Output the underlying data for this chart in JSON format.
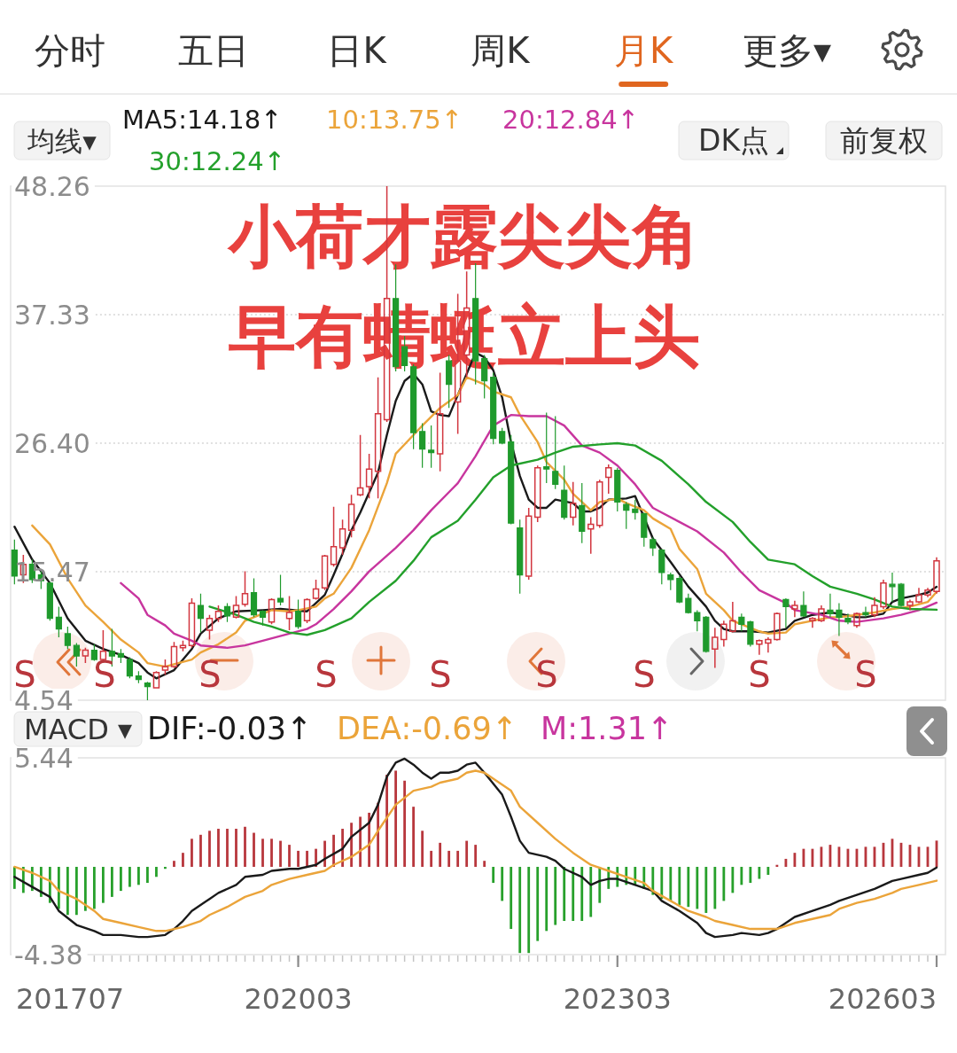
{
  "chart_data": [
    {
      "type": "other",
      "categories": [
        "分时",
        "五日",
        "日K",
        "周K",
        "月K",
        "更多▾"
      ],
      "colors": [
        "#333333",
        "#333333",
        "#333333",
        "#333333",
        "#e0661f",
        "#333333"
      ]
    },
    {
      "type": "candlestick",
      "title": "小荷才露尖尖角",
      "subtitle": "早有蜻蜓立上头",
      "legend_title": "均线▾",
      "legend": "top",
      "x": [
        "2017-07",
        "2017-08",
        "2017-09",
        "2017-10",
        "2017-11",
        "2017-12",
        "2018-01",
        "2018-02",
        "2018-03",
        "2018-04",
        "2018-05",
        "2018-06",
        "2018-07",
        "2018-08",
        "2018-09",
        "2018-10",
        "2018-11",
        "2018-12",
        "2019-01",
        "2019-02",
        "2019-03",
        "2019-04",
        "2019-05",
        "2019-06",
        "2019-07",
        "2019-08",
        "2019-09",
        "2019-10",
        "2019-11",
        "2019-12",
        "2020-01",
        "2020-02",
        "2020-03",
        "2020-04",
        "2020-05",
        "2020-06",
        "2020-07",
        "2020-08",
        "2020-09",
        "2020-10",
        "2020-11",
        "2020-12",
        "2021-01",
        "2021-02",
        "2021-03",
        "2021-04",
        "2021-05",
        "2021-06",
        "2021-07",
        "2021-08",
        "2021-09",
        "2021-10",
        "2021-11",
        "2021-12",
        "2022-01",
        "2022-02",
        "2022-03",
        "2022-04",
        "2022-05",
        "2022-06",
        "2022-07",
        "2022-08",
        "2022-09",
        "2022-10",
        "2022-11",
        "2022-12",
        "2023-01",
        "2023-02",
        "2023-03",
        "2023-04",
        "2023-05",
        "2023-06",
        "2023-07",
        "2023-08",
        "2023-09",
        "2023-10",
        "2023-11",
        "2023-12",
        "2024-01",
        "2024-02",
        "2024-03",
        "2024-04",
        "2024-05",
        "2024-06",
        "2024-07",
        "2024-08",
        "2024-09",
        "2024-10",
        "2024-11",
        "2024-12",
        "2025-01",
        "2025-02",
        "2025-03",
        "2025-04",
        "2025-05",
        "2025-06",
        "2025-07",
        "2025-08",
        "2025-09",
        "2025-10",
        "2025-11",
        "2025-12",
        "2026-01",
        "2026-02",
        "2026-03"
      ],
      "ohlc": [
        [
          17.3,
          18.2,
          14.4,
          15.1
        ],
        [
          15.2,
          16.9,
          14.5,
          16.1
        ],
        [
          16.1,
          16.5,
          14.5,
          14.8
        ],
        [
          15.2,
          15.5,
          14.0,
          14.7
        ],
        [
          14.5,
          14.6,
          11.3,
          11.5
        ],
        [
          11.6,
          12.5,
          9.9,
          10.6
        ],
        [
          10.2,
          10.8,
          8.9,
          9.2
        ],
        [
          9.2,
          9.4,
          7.4,
          8.3
        ],
        [
          8.3,
          9.0,
          7.7,
          8.8
        ],
        [
          8.8,
          9.3,
          7.9,
          8.0
        ],
        [
          8.0,
          10.5,
          7.9,
          8.7
        ],
        [
          8.7,
          10.6,
          7.4,
          8.3
        ],
        [
          8.5,
          8.9,
          7.7,
          8.2
        ],
        [
          8.0,
          8.2,
          6.4,
          6.6
        ],
        [
          6.6,
          7.0,
          6.0,
          6.3
        ],
        [
          6.0,
          6.1,
          4.54,
          5.7
        ],
        [
          5.6,
          7.0,
          5.6,
          6.9
        ],
        [
          7.1,
          8.0,
          6.7,
          7.4
        ],
        [
          7.4,
          9.5,
          7.3,
          9.1
        ],
        [
          9.0,
          9.6,
          8.7,
          9.2
        ],
        [
          9.2,
          13.2,
          9.0,
          12.8
        ],
        [
          12.6,
          13.6,
          10.3,
          11.5
        ],
        [
          10.5,
          11.8,
          9.7,
          11.5
        ],
        [
          11.5,
          12.6,
          11.2,
          12.1
        ],
        [
          12.5,
          12.8,
          11.2,
          11.7
        ],
        [
          11.6,
          13.4,
          11.5,
          12.6
        ],
        [
          12.7,
          15.5,
          12.5,
          13.6
        ],
        [
          13.7,
          14.9,
          11.6,
          11.8
        ],
        [
          12.1,
          12.2,
          10.9,
          11.6
        ],
        [
          11.2,
          13.2,
          11.0,
          13.1
        ],
        [
          13.2,
          15.2,
          12.6,
          12.9
        ],
        [
          11.5,
          13.4,
          10.5,
          12.0
        ],
        [
          12.1,
          13.1,
          10.6,
          10.8
        ],
        [
          11.3,
          13.2,
          11.1,
          13.1
        ],
        [
          13.2,
          14.8,
          13.1,
          14.0
        ],
        [
          14.1,
          16.9,
          13.9,
          16.8
        ],
        [
          16.1,
          21.0,
          15.9,
          17.6
        ],
        [
          17.5,
          19.9,
          16.9,
          19.1
        ],
        [
          19.0,
          22.0,
          18.4,
          21.2
        ],
        [
          22.0,
          27.1,
          21.9,
          22.6
        ],
        [
          22.7,
          25.5,
          21.7,
          24.2
        ],
        [
          24.0,
          32.0,
          21.7,
          28.9
        ],
        [
          28.4,
          48.26,
          28.2,
          38.7
        ],
        [
          38.7,
          41.6,
          32.5,
          32.9
        ],
        [
          34.6,
          35.5,
          32.5,
          33.0
        ],
        [
          32.9,
          33.1,
          25.9,
          27.3
        ],
        [
          27.4,
          28.1,
          24.3,
          25.9
        ],
        [
          25.8,
          27.9,
          24.3,
          25.6
        ],
        [
          25.5,
          32.4,
          24.0,
          28.9
        ],
        [
          33.4,
          33.9,
          29.4,
          31.4
        ],
        [
          29.9,
          39.1,
          27.2,
          33.4
        ],
        [
          33.9,
          41.0,
          32.0,
          37.9
        ],
        [
          38.7,
          41.7,
          31.4,
          33.4
        ],
        [
          33.6,
          33.9,
          30.2,
          31.7
        ],
        [
          32.0,
          32.4,
          26.3,
          26.8
        ],
        [
          27.4,
          27.7,
          26.3,
          26.4
        ],
        [
          26.5,
          27.1,
          19.5,
          19.6
        ],
        [
          19.2,
          19.9,
          13.6,
          15.2
        ],
        [
          15.1,
          20.9,
          14.8,
          20.2
        ],
        [
          20.1,
          24.5,
          19.7,
          24.3
        ],
        [
          24.4,
          29.0,
          23.0,
          24.2
        ],
        [
          24.0,
          28.7,
          22.5,
          22.9
        ],
        [
          22.4,
          24.5,
          19.9,
          20.1
        ],
        [
          20.1,
          23.1,
          19.4,
          21.3
        ],
        [
          21.1,
          23.0,
          17.9,
          18.9
        ],
        [
          19.1,
          20.1,
          17.0,
          19.5
        ],
        [
          19.4,
          23.3,
          19.2,
          23.1
        ],
        [
          23.5,
          24.6,
          22.1,
          24.3
        ],
        [
          24.1,
          24.3,
          20.6,
          21.4
        ],
        [
          21.2,
          21.4,
          19.1,
          20.7
        ],
        [
          20.8,
          21.6,
          19.9,
          20.5
        ],
        [
          20.4,
          20.5,
          17.6,
          18.4
        ],
        [
          18.2,
          18.4,
          16.8,
          17.5
        ],
        [
          17.3,
          17.4,
          14.4,
          15.4
        ],
        [
          15.2,
          15.4,
          13.9,
          14.8
        ],
        [
          14.9,
          15.1,
          12.8,
          12.9
        ],
        [
          13.2,
          13.6,
          11.9,
          12.0
        ],
        [
          12.0,
          12.2,
          10.4,
          11.3
        ],
        [
          11.6,
          11.7,
          8.6,
          8.7
        ],
        [
          8.9,
          10.7,
          7.3,
          9.9
        ],
        [
          9.7,
          11.3,
          9.1,
          11.0
        ],
        [
          10.4,
          12.9,
          10.3,
          11.3
        ],
        [
          11.6,
          11.9,
          10.4,
          11.0
        ],
        [
          11.2,
          11.3,
          9.1,
          9.3
        ],
        [
          9.3,
          9.7,
          8.4,
          9.6
        ],
        [
          9.4,
          9.9,
          8.6,
          9.7
        ],
        [
          9.7,
          12.0,
          9.6,
          11.9
        ],
        [
          13.1,
          13.2,
          10.7,
          12.5
        ],
        [
          12.3,
          13.0,
          11.6,
          12.6
        ],
        [
          12.6,
          13.8,
          11.6,
          11.7
        ],
        [
          11.3,
          11.6,
          10.7,
          11.5
        ],
        [
          11.3,
          12.6,
          11.2,
          12.3
        ],
        [
          12.2,
          13.6,
          11.6,
          11.9
        ],
        [
          12.2,
          12.8,
          10.0,
          11.6
        ],
        [
          11.5,
          11.9,
          11.0,
          11.2
        ],
        [
          10.9,
          12.0,
          10.7,
          11.9
        ],
        [
          12.0,
          12.5,
          11.6,
          11.8
        ],
        [
          11.8,
          13.3,
          11.6,
          12.6
        ],
        [
          12.5,
          14.8,
          12.3,
          14.5
        ],
        [
          14.4,
          15.4,
          12.9,
          14.2
        ],
        [
          14.4,
          14.5,
          12.5,
          12.6
        ],
        [
          12.6,
          13.1,
          12.2,
          12.9
        ],
        [
          12.9,
          14.1,
          12.8,
          13.5
        ],
        [
          13.5,
          14.1,
          13.3,
          13.9
        ],
        [
          13.8,
          16.7,
          13.6,
          16.4
        ]
      ],
      "series": [
        {
          "name": "MA5:14.18↑",
          "type": "line",
          "color": "#1a1a1a",
          "x": [
            "2017-07",
            "2017-09",
            "2017-11",
            "2018-01",
            "2018-03",
            "2018-05",
            "2018-07",
            "2018-09",
            "2018-10",
            "2018-11",
            "2019-01",
            "2019-03",
            "2019-04",
            "2019-06",
            "2019-08",
            "2019-11",
            "2020-01",
            "2020-04",
            "2020-06",
            "2020-07",
            "2020-08",
            "2020-09",
            "2020-10",
            "2020-11",
            "2020-12",
            "2021-01",
            "2021-02",
            "2021-03",
            "2021-04",
            "2021-05",
            "2021-06",
            "2021-07",
            "2021-08",
            "2021-09",
            "2021-10",
            "2021-11",
            "2021-12",
            "2022-01",
            "2022-02",
            "2022-03",
            "2022-04",
            "2022-05",
            "2022-06",
            "2022-07",
            "2022-08",
            "2022-10",
            "2022-11",
            "2022-12",
            "2023-01",
            "2023-02",
            "2023-04",
            "2023-05",
            "2023-07",
            "2023-09",
            "2023-11",
            "2024-01",
            "2024-02",
            "2024-03",
            "2024-04",
            "2024-06",
            "2024-08",
            "2024-10",
            "2024-11",
            "2025-01",
            "2025-03",
            "2025-04",
            "2025-06",
            "2025-07",
            "2025-09",
            "2025-10",
            "2025-11",
            "2026-01",
            "2026-02",
            "2026-03"
          ],
          "values": [
            19.3,
            16.5,
            14.5,
            11.5,
            9.6,
            8.9,
            8.4,
            7.7,
            6.9,
            6.4,
            7.1,
            8.9,
            10.2,
            11.5,
            12.1,
            12.2,
            12.3,
            12.1,
            13.5,
            15.2,
            17.0,
            19.0,
            20.5,
            22.2,
            23.9,
            27.1,
            30.0,
            31.7,
            32.3,
            31.4,
            29.1,
            28.8,
            28.7,
            30.5,
            32.3,
            34.1,
            33.7,
            32.6,
            30.3,
            26.5,
            23.6,
            21.6,
            20.9,
            20.9,
            21.6,
            21.3,
            20.6,
            20.6,
            20.9,
            21.6,
            21.7,
            21.9,
            18.3,
            16.3,
            14.2,
            12.5,
            11.3,
            10.6,
            10.4,
            10.4,
            10.3,
            10.6,
            11.3,
            11.8,
            12.0,
            11.9,
            11.6,
            11.6,
            11.9,
            12.9,
            13.2,
            13.5,
            13.7,
            14.18
          ]
        },
        {
          "name": "10:13.75↑",
          "type": "line",
          "color": "#eba43a",
          "x": [
            "2017-09",
            "2017-11",
            "2018-01",
            "2018-03",
            "2018-05",
            "2018-07",
            "2018-09",
            "2018-10",
            "2018-12",
            "2019-01",
            "2019-03",
            "2019-04",
            "2019-06",
            "2019-08",
            "2019-09",
            "2019-11",
            "2019-12",
            "2020-02",
            "2020-03",
            "2020-05",
            "2020-06",
            "2020-07",
            "2020-09",
            "2020-11",
            "2021-01",
            "2021-02",
            "2021-04",
            "2021-05",
            "2021-07",
            "2021-09",
            "2021-10",
            "2021-12",
            "2022-01",
            "2022-03",
            "2022-04",
            "2022-06",
            "2022-07",
            "2022-09",
            "2022-10",
            "2022-12",
            "2023-01",
            "2023-03",
            "2023-04",
            "2023-06",
            "2023-07",
            "2023-09",
            "2023-10",
            "2023-12",
            "2024-01",
            "2024-03",
            "2024-04",
            "2024-06",
            "2024-07",
            "2024-08",
            "2024-10",
            "2024-11",
            "2025-01",
            "2025-03",
            "2025-04",
            "2025-06",
            "2025-08",
            "2025-10",
            "2025-12",
            "2026-02",
            "2026-03"
          ],
          "values": [
            19.4,
            17.8,
            14.9,
            12.6,
            11.2,
            9.7,
            8.6,
            7.7,
            7.4,
            7.6,
            8.0,
            8.6,
            9.3,
            10.3,
            11.3,
            11.9,
            12.2,
            12.1,
            12.2,
            12.5,
            13.2,
            13.6,
            15.8,
            19.0,
            23.0,
            25.5,
            27.1,
            27.9,
            29.4,
            30.5,
            32.0,
            31.4,
            30.8,
            30.3,
            28.8,
            26.5,
            24.8,
            23.3,
            22.1,
            20.7,
            21.4,
            21.7,
            21.3,
            20.7,
            20.0,
            19.1,
            17.4,
            15.7,
            13.6,
            12.2,
            11.3,
            10.7,
            10.4,
            10.2,
            10.3,
            11.0,
            11.3,
            11.6,
            11.6,
            11.8,
            12.0,
            12.3,
            12.5,
            12.9,
            13.75
          ]
        },
        {
          "name": "20:12.84↑",
          "type": "line",
          "color": "#c8359e",
          "x": [
            "2018-07",
            "2018-09",
            "2018-10",
            "2018-12",
            "2019-01",
            "2019-03",
            "2019-04",
            "2019-07",
            "2019-09",
            "2019-11",
            "2020-02",
            "2020-04",
            "2020-05",
            "2020-07",
            "2020-09",
            "2020-11",
            "2021-02",
            "2021-04",
            "2021-06",
            "2021-09",
            "2021-11",
            "2022-01",
            "2022-03",
            "2022-05",
            "2022-07",
            "2022-09",
            "2022-11",
            "2023-01",
            "2023-03",
            "2023-05",
            "2023-07",
            "2023-10",
            "2023-12",
            "2024-03",
            "2024-05",
            "2024-07",
            "2024-10",
            "2024-11",
            "2025-02",
            "2025-04",
            "2025-06",
            "2025-09",
            "2025-11",
            "2026-01",
            "2026-03"
          ],
          "values": [
            14.5,
            13.2,
            11.8,
            10.9,
            10.2,
            9.6,
            9.2,
            9.0,
            9.2,
            9.6,
            10.2,
            10.6,
            11.0,
            12.3,
            13.8,
            15.5,
            17.5,
            19.0,
            20.7,
            23.0,
            25.3,
            27.9,
            28.8,
            28.7,
            28.7,
            27.9,
            26.2,
            25.6,
            24.5,
            22.9,
            20.9,
            19.7,
            18.9,
            17.1,
            15.4,
            13.9,
            12.8,
            12.2,
            11.8,
            11.3,
            11.2,
            11.5,
            11.8,
            12.2,
            12.84
          ]
        },
        {
          "name": "30:12.24↑",
          "type": "line",
          "color": "#23a02b",
          "x": [
            "2019-05",
            "2019-08",
            "2019-10",
            "2019-12",
            "2020-02",
            "2020-04",
            "2020-06",
            "2020-09",
            "2020-11",
            "2021-02",
            "2021-04",
            "2021-06",
            "2021-09",
            "2021-11",
            "2022-01",
            "2022-03",
            "2022-06",
            "2022-08",
            "2022-10",
            "2023-01",
            "2023-03",
            "2023-05",
            "2023-08",
            "2023-11",
            "2024-01",
            "2024-04",
            "2024-06",
            "2024-08",
            "2024-11",
            "2025-01",
            "2025-03",
            "2025-06",
            "2025-08",
            "2025-10",
            "2025-12",
            "2026-03"
          ],
          "values": [
            12.5,
            11.8,
            11.2,
            10.8,
            10.3,
            10.1,
            10.5,
            11.5,
            12.9,
            14.7,
            16.4,
            18.4,
            19.8,
            21.6,
            23.5,
            24.5,
            25.0,
            25.6,
            26.1,
            26.3,
            26.4,
            26.2,
            24.9,
            22.9,
            21.4,
            19.7,
            18.0,
            16.5,
            16.1,
            15.1,
            14.2,
            13.6,
            13.1,
            12.5,
            12.3,
            12.24
          ]
        }
      ],
      "xlim": [
        "2017-06-18",
        "2026-04-01"
      ],
      "ylim": [
        4.54,
        48.26
      ],
      "yticks": [
        4.54,
        15.47,
        {
          "value": 26.4,
          "label": "26.40"
        },
        37.33,
        48.26
      ],
      "grid": "y",
      "tick_labels": "y",
      "annotations": [
        "DK点",
        "前复权",
        "S",
        "S",
        "S",
        "S",
        "S",
        "S",
        "S",
        "S",
        "S"
      ]
    },
    {
      "type": "bar",
      "legend_title": "MACD ▾",
      "legend": "top",
      "x": [
        "2017-07",
        "2017-08",
        "2017-09",
        "2017-10",
        "2017-11",
        "2017-12",
        "2018-01",
        "2018-02",
        "2018-03",
        "2018-04",
        "2018-05",
        "2018-06",
        "2018-07",
        "2018-08",
        "2018-09",
        "2018-10",
        "2018-11",
        "2018-12",
        "2019-01",
        "2019-02",
        "2019-03",
        "2019-04",
        "2019-05",
        "2019-06",
        "2019-07",
        "2019-08",
        "2019-09",
        "2019-10",
        "2019-11",
        "2019-12",
        "2020-01",
        "2020-02",
        "2020-03",
        "2020-04",
        "2020-05",
        "2020-06",
        "2020-07",
        "2020-08",
        "2020-09",
        "2020-10",
        "2020-11",
        "2020-12",
        "2021-01",
        "2021-02",
        "2021-03",
        "2021-04",
        "2021-05",
        "2021-06",
        "2021-07",
        "2021-08",
        "2021-09",
        "2021-10",
        "2021-11",
        "2021-12",
        "2022-01",
        "2022-02",
        "2022-03",
        "2022-04",
        "2022-05",
        "2022-06",
        "2022-07",
        "2022-08",
        "2022-09",
        "2022-10",
        "2022-11",
        "2022-12",
        "2023-01",
        "2023-02",
        "2023-03",
        "2023-04",
        "2023-05",
        "2023-06",
        "2023-07",
        "2023-08",
        "2023-09",
        "2023-10",
        "2023-11",
        "2023-12",
        "2024-01",
        "2024-02",
        "2024-03",
        "2024-04",
        "2024-05",
        "2024-06",
        "2024-07",
        "2024-08",
        "2024-09",
        "2024-10",
        "2024-11",
        "2024-12",
        "2025-01",
        "2025-02",
        "2025-03",
        "2025-04",
        "2025-05",
        "2025-06",
        "2025-07",
        "2025-08",
        "2025-09",
        "2025-10",
        "2025-11",
        "2025-12",
        "2026-01",
        "2026-02",
        "2026-03"
      ],
      "series": [
        {
          "name": "DIF:-0.03↑",
          "type": "line",
          "color": "#1a1a1a",
          "x": [
            "2017-07",
            "2017-09",
            "2017-11",
            "2017-12",
            "2018-02",
            "2018-04",
            "2018-05",
            "2018-07",
            "2018-09",
            "2018-10",
            "2018-12",
            "2019-01",
            "2019-02",
            "2019-03",
            "2019-05",
            "2019-06",
            "2019-08",
            "2019-09",
            "2019-11",
            "2019-12",
            "2020-02",
            "2020-03",
            "2020-05",
            "2020-06",
            "2020-08",
            "2020-09",
            "2020-11",
            "2020-12",
            "2021-01",
            "2021-02",
            "2021-03",
            "2021-04",
            "2021-05",
            "2021-06",
            "2021-07",
            "2021-08",
            "2021-09",
            "2021-10",
            "2021-11",
            "2021-12",
            "2022-02",
            "2022-03",
            "2022-04",
            "2022-05",
            "2022-07",
            "2022-08",
            "2022-09",
            "2022-11",
            "2022-12",
            "2023-01",
            "2023-02",
            "2023-03",
            "2023-05",
            "2023-07",
            "2023-08",
            "2023-10",
            "2023-12",
            "2024-01",
            "2024-02",
            "2024-04",
            "2024-05",
            "2024-07",
            "2024-08",
            "2024-09",
            "2024-11",
            "2025-01",
            "2025-03",
            "2025-04",
            "2025-06",
            "2025-08",
            "2025-10",
            "2025-11",
            "2026-01",
            "2026-02",
            "2026-03"
          ],
          "values": [
            -0.5,
            -1.0,
            -1.5,
            -2.2,
            -2.9,
            -3.2,
            -3.4,
            -3.4,
            -3.5,
            -3.5,
            -3.4,
            -3.1,
            -2.7,
            -2.2,
            -1.6,
            -1.3,
            -0.9,
            -0.5,
            -0.4,
            -0.2,
            -0.1,
            -0.1,
            0.1,
            0.4,
            0.9,
            1.5,
            2.2,
            3.1,
            4.5,
            5.2,
            5.4,
            5.1,
            4.7,
            4.4,
            4.7,
            4.7,
            4.8,
            5.1,
            5.2,
            4.7,
            3.6,
            2.5,
            1.3,
            0.7,
            0.5,
            0.3,
            -0.1,
            -0.5,
            -0.9,
            -0.7,
            -0.6,
            -0.6,
            -0.9,
            -1.2,
            -1.7,
            -2.2,
            -2.8,
            -3.3,
            -3.5,
            -3.4,
            -3.3,
            -3.4,
            -3.3,
            -3.1,
            -2.5,
            -2.2,
            -1.9,
            -1.7,
            -1.4,
            -1.1,
            -0.7,
            -0.6,
            -0.4,
            -0.3,
            -0.03
          ]
        },
        {
          "name": "DEA:-0.69↑",
          "type": "line",
          "color": "#eba43a",
          "x": [
            "2017-07",
            "2017-09",
            "2017-11",
            "2017-12",
            "2018-02",
            "2018-04",
            "2018-05",
            "2018-07",
            "2018-09",
            "2018-11",
            "2018-12",
            "2019-02",
            "2019-04",
            "2019-05",
            "2019-07",
            "2019-09",
            "2019-11",
            "2019-12",
            "2020-02",
            "2020-04",
            "2020-06",
            "2020-07",
            "2020-09",
            "2020-11",
            "2020-12",
            "2021-02",
            "2021-04",
            "2021-06",
            "2021-07",
            "2021-09",
            "2021-10",
            "2021-11",
            "2021-12",
            "2022-01",
            "2022-03",
            "2022-04",
            "2022-06",
            "2022-08",
            "2022-10",
            "2022-12",
            "2023-02",
            "2023-04",
            "2023-06",
            "2023-07",
            "2023-09",
            "2023-11",
            "2024-01",
            "2024-02",
            "2024-04",
            "2024-06",
            "2024-08",
            "2024-09",
            "2024-11",
            "2025-01",
            "2025-03",
            "2025-04",
            "2025-06",
            "2025-08",
            "2025-10",
            "2025-11",
            "2026-01",
            "2026-03"
          ],
          "values": [
            0.0,
            -0.3,
            -0.7,
            -1.2,
            -1.6,
            -2.2,
            -2.6,
            -2.8,
            -3.0,
            -3.2,
            -3.2,
            -3.0,
            -2.7,
            -2.4,
            -2.0,
            -1.5,
            -1.2,
            -0.9,
            -0.6,
            -0.4,
            -0.2,
            0.1,
            0.5,
            1.1,
            1.8,
            3.1,
            3.8,
            4.0,
            4.2,
            4.4,
            4.7,
            4.8,
            4.7,
            4.4,
            3.8,
            3.0,
            2.2,
            1.4,
            0.7,
            0.1,
            -0.2,
            -0.5,
            -0.8,
            -1.2,
            -1.7,
            -2.2,
            -2.5,
            -2.7,
            -2.9,
            -3.1,
            -3.1,
            -3.1,
            -2.8,
            -2.6,
            -2.4,
            -2.1,
            -1.8,
            -1.6,
            -1.3,
            -1.1,
            -0.9,
            -0.69
          ]
        },
        {
          "type": "bar",
          "values": [
            -1.1,
            -1.3,
            -1.2,
            -1.5,
            -1.8,
            -2.1,
            -2.4,
            -2.4,
            -2.2,
            -2.1,
            -1.8,
            -1.5,
            -1.2,
            -1.0,
            -0.9,
            -0.8,
            -0.5,
            -0.1,
            0.3,
            0.7,
            1.4,
            1.6,
            1.8,
            1.9,
            1.9,
            1.9,
            2.0,
            1.7,
            1.4,
            1.4,
            1.3,
            1.1,
            0.8,
            0.8,
            0.9,
            1.3,
            1.6,
            1.9,
            2.2,
            2.5,
            2.7,
            3.2,
            4.6,
            4.8,
            4.3,
            3.0,
            1.8,
            0.8,
            1.2,
            0.8,
            0.8,
            1.3,
            1.1,
            0.3,
            -0.8,
            -1.7,
            -3.1,
            -4.3,
            -4.3,
            -3.7,
            -3.2,
            -2.9,
            -2.7,
            -2.7,
            -2.7,
            -2.5,
            -1.8,
            -1.1,
            -1.0,
            -0.9,
            -0.9,
            -1.1,
            -1.4,
            -1.6,
            -1.7,
            -1.9,
            -2.0,
            -2.1,
            -2.3,
            -2.1,
            -1.7,
            -1.3,
            -0.9,
            -0.8,
            -0.6,
            -0.4,
            0.1,
            0.4,
            0.7,
            0.9,
            0.9,
            1.0,
            1.1,
            1.0,
            0.9,
            0.9,
            1.0,
            1.0,
            1.2,
            1.4,
            1.2,
            1.1,
            1.0,
            1.0,
            1.31
          ],
          "colors": [
            "#27a02b",
            "#27a02b",
            "#27a02b",
            "#27a02b",
            "#27a02b",
            "#27a02b",
            "#27a02b",
            "#27a02b",
            "#27a02b",
            "#27a02b",
            "#27a02b",
            "#27a02b",
            "#27a02b",
            "#27a02b",
            "#27a02b",
            "#27a02b",
            "#27a02b",
            "#27a02b",
            "#b8373d",
            "#b8373d",
            "#b8373d",
            "#b8373d",
            "#b8373d",
            "#b8373d",
            "#b8373d",
            "#b8373d",
            "#b8373d",
            "#b8373d",
            "#b8373d",
            "#b8373d",
            "#b8373d",
            "#b8373d",
            "#b8373d",
            "#b8373d",
            "#b8373d",
            "#b8373d",
            "#b8373d",
            "#b8373d",
            "#b8373d",
            "#b8373d",
            "#b8373d",
            "#b8373d",
            "#b8373d",
            "#b8373d",
            "#b8373d",
            "#b8373d",
            "#b8373d",
            "#b8373d",
            "#b8373d",
            "#b8373d",
            "#b8373d",
            "#b8373d",
            "#b8373d",
            "#b8373d",
            "#27a02b",
            "#27a02b",
            "#27a02b",
            "#27a02b",
            "#27a02b",
            "#27a02b",
            "#27a02b",
            "#27a02b",
            "#27a02b",
            "#27a02b",
            "#27a02b",
            "#27a02b",
            "#27a02b",
            "#27a02b",
            "#27a02b",
            "#27a02b",
            "#27a02b",
            "#27a02b",
            "#27a02b",
            "#27a02b",
            "#27a02b",
            "#27a02b",
            "#27a02b",
            "#27a02b",
            "#27a02b",
            "#27a02b",
            "#27a02b",
            "#27a02b",
            "#27a02b",
            "#27a02b",
            "#27a02b",
            "#27a02b",
            "#b8373d",
            "#b8373d",
            "#b8373d",
            "#b8373d",
            "#b8373d",
            "#b8373d",
            "#b8373d",
            "#b8373d",
            "#b8373d",
            "#b8373d",
            "#b8373d",
            "#b8373d",
            "#b8373d",
            "#b8373d",
            "#b8373d",
            "#b8373d",
            "#b8373d",
            "#b8373d",
            "#b8373d"
          ]
        }
      ],
      "annotations": [
        "M:1.31↑"
      ],
      "xlim": [
        "2017-06-18",
        "2026-04-01"
      ],
      "xticks": [
        {
          "value": "2017-07",
          "label": "201707"
        },
        {
          "value": "2020-03",
          "label": "202003"
        },
        {
          "value": "2023-03",
          "label": "202303"
        },
        {
          "value": "2026-03",
          "label": "202603"
        }
      ],
      "ylim": [
        -4.38,
        5.44
      ],
      "yticks": [
        -4.38,
        5.44
      ]
    }
  ]
}
